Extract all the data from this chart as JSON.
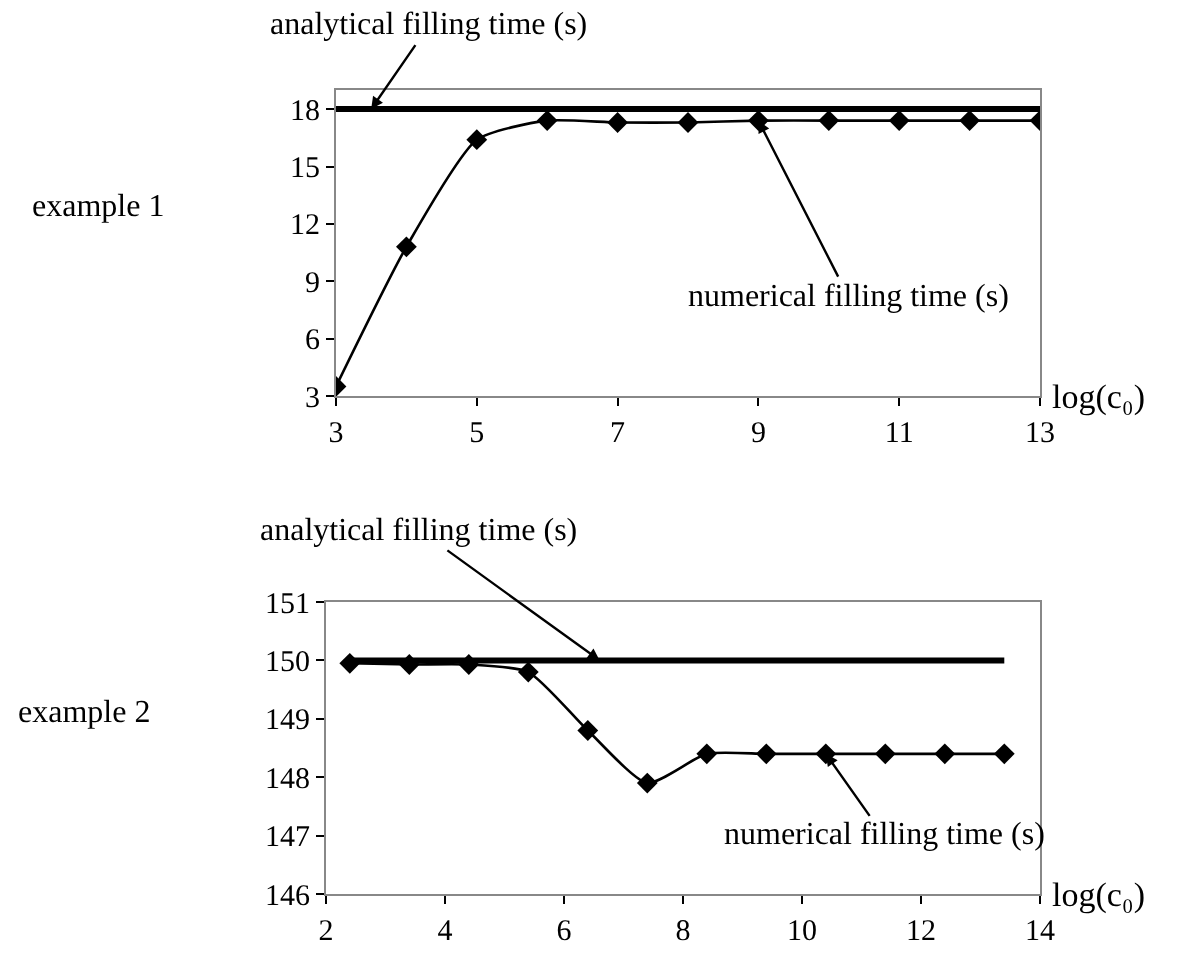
{
  "chart_data": [
    {
      "type": "line",
      "ylabel": "example 1",
      "xlabel": "log(c₀)",
      "xlim": [
        3,
        13
      ],
      "xticks": [
        3,
        5,
        7,
        9,
        11,
        13
      ],
      "ylim": [
        3,
        19
      ],
      "yticks": [
        3,
        6,
        9,
        12,
        15,
        18
      ],
      "grid": false,
      "marker": "diamond",
      "line_style": "solid",
      "series": [
        {
          "color": "#000000",
          "marker": "none",
          "x": [
            3,
            13
          ],
          "values": [
            18,
            18
          ]
        },
        {
          "color": "#000000",
          "x": [
            3,
            4,
            5,
            6,
            7,
            8,
            9,
            10,
            11,
            12,
            13
          ],
          "values": [
            3.5,
            10.8,
            16.4,
            17.4,
            17.3,
            17.3,
            17.4,
            17.4,
            17.4,
            17.4,
            17.4
          ]
        }
      ],
      "annotations": [
        {
          "text": "analytical filling time (s)",
          "x": 3.5,
          "y": 18
        },
        {
          "text": "numerical filling time (s)",
          "x": 9,
          "y": 17.4
        }
      ]
    },
    {
      "type": "line",
      "ylabel": "example 2",
      "xlabel": "log(c₀)",
      "xlim": [
        2,
        14
      ],
      "xticks": [
        2,
        4,
        6,
        8,
        10,
        12,
        14
      ],
      "ylim": [
        146,
        151
      ],
      "yticks": [
        146,
        147,
        148,
        149,
        150,
        151
      ],
      "grid": false,
      "marker": "diamond",
      "line_style": "solid",
      "series": [
        {
          "color": "#000000",
          "marker": "none",
          "x": [
            2.4,
            13.4
          ],
          "values": [
            150,
            150
          ]
        },
        {
          "color": "#000000",
          "x": [
            2.4,
            3.4,
            4.4,
            5.4,
            6.4,
            7.4,
            8.4,
            9.4,
            10.4,
            11.4,
            12.4,
            13.4
          ],
          "values": [
            149.95,
            149.93,
            149.93,
            149.8,
            148.8,
            147.9,
            148.4,
            148.4,
            148.4,
            148.4,
            148.4,
            148.4
          ]
        }
      ],
      "annotations": [
        {
          "text": "analytical filling time (s)",
          "x": 6.6,
          "y": 150
        },
        {
          "text": "numerical filling time (s)",
          "x": 10.4,
          "y": 148.4
        }
      ]
    }
  ]
}
